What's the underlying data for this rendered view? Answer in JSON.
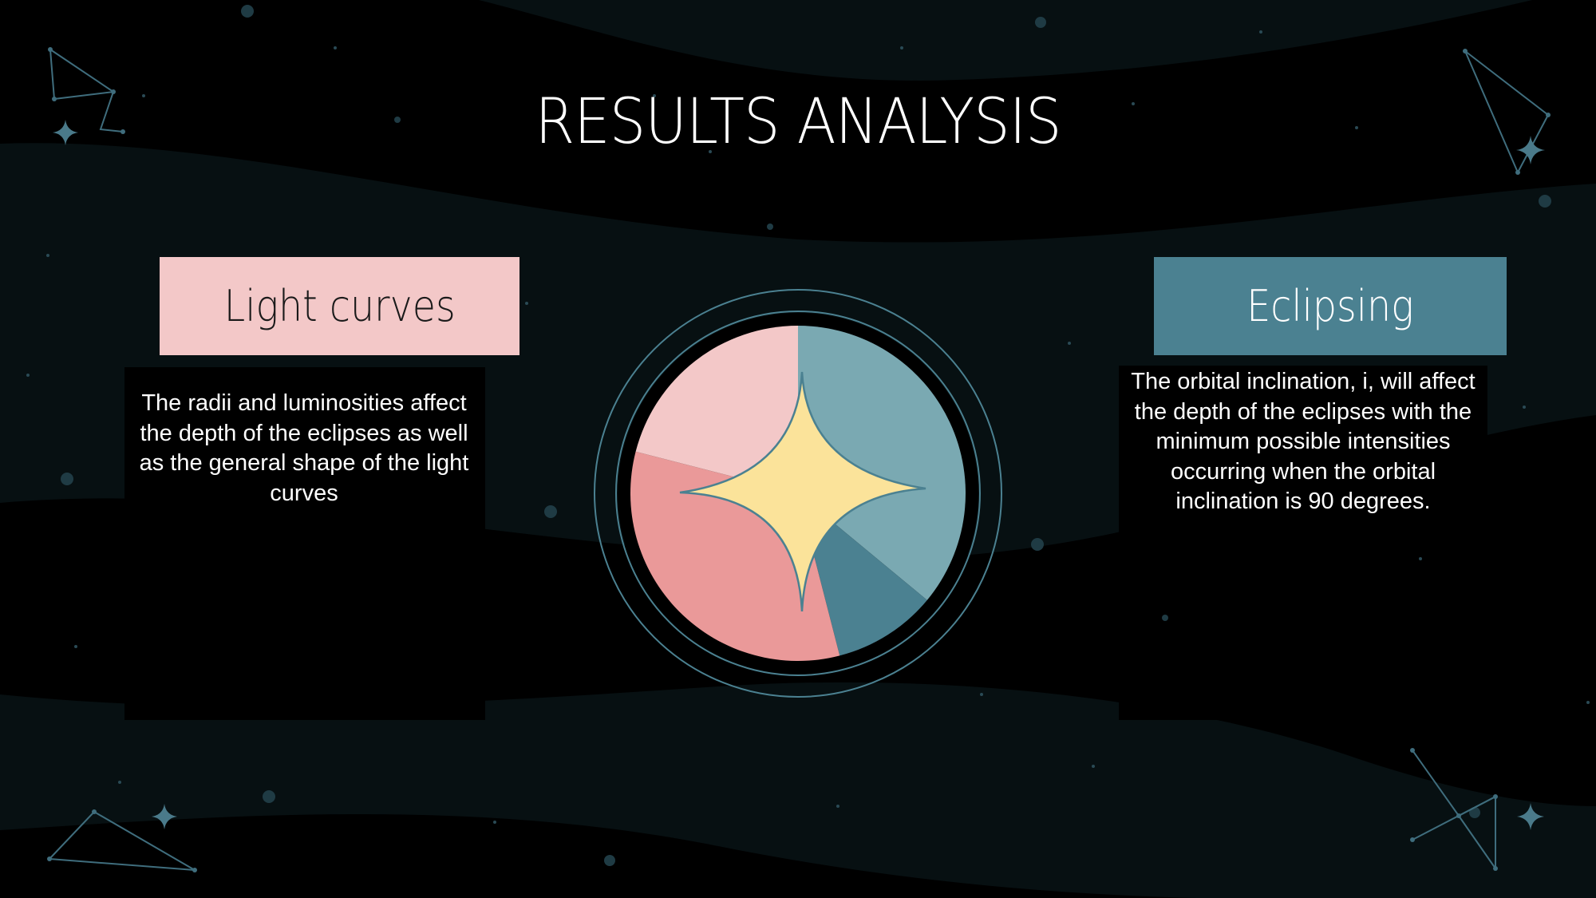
{
  "slide": {
    "title": "RESULTS ANALYSIS",
    "left": {
      "label": "Light curves",
      "body": "The radii and luminosities affect the depth of the eclipses as well as the general shape of the light curves"
    },
    "right": {
      "label": "Eclipsing",
      "body": "The orbital inclination, i, will affect the depth of the eclipses with the minimum possible intensities occurring when the orbital inclination is 90 degrees."
    }
  },
  "theme": {
    "background": "#000000",
    "band_color": "#071012",
    "constellation_color": "#3f6d7d",
    "pink_label": "#f3c8c8",
    "teal_label": "#4b8191",
    "star_color": "#fbe39a"
  },
  "chart_data": {
    "type": "pie",
    "segments": [
      {
        "percent": 36,
        "color": "#7aa9b2"
      },
      {
        "percent": 10,
        "color": "#4b8191"
      },
      {
        "percent": 33,
        "color": "#ea9999"
      },
      {
        "percent": 21,
        "color": "#f3c8c8"
      }
    ]
  }
}
